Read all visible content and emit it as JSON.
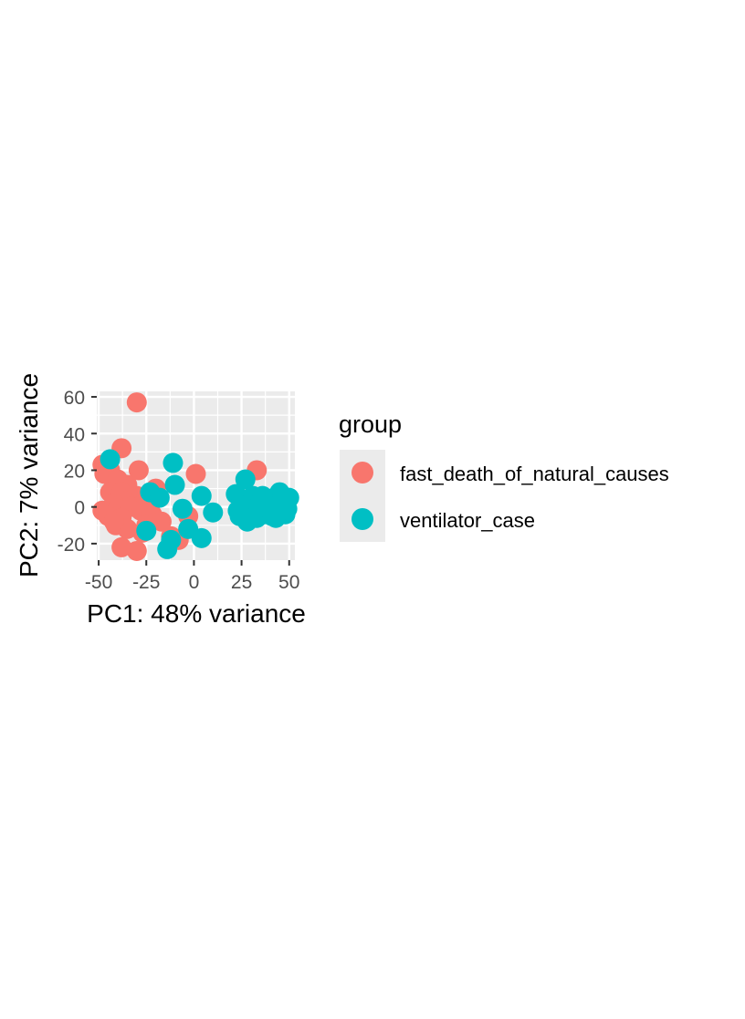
{
  "chart_data": {
    "type": "scatter",
    "xlabel": "PC1: 48% variance",
    "ylabel": "PC2: 7% variance",
    "xlim": [
      -51,
      53
    ],
    "ylim": [
      -29,
      63
    ],
    "x_ticks": [
      -50,
      -25,
      0,
      25,
      50
    ],
    "x_tick_labels": [
      "-50",
      "-25",
      "0",
      "25",
      "50"
    ],
    "y_ticks": [
      -20,
      0,
      20,
      40,
      60
    ],
    "y_tick_labels": [
      "-20",
      "0",
      "20",
      "40",
      "60"
    ],
    "grid": true,
    "legend": {
      "title": "group",
      "placement": "right"
    },
    "series": [
      {
        "name": "fast_death_of_natural_causes",
        "color": "#F8766D",
        "points": [
          [
            -30,
            57
          ],
          [
            -38,
            32
          ],
          [
            -48,
            23
          ],
          [
            -44,
            20
          ],
          [
            -29,
            20
          ],
          [
            -47,
            18
          ],
          [
            1,
            18
          ],
          [
            33,
            20
          ],
          [
            -40,
            15
          ],
          [
            -35,
            12
          ],
          [
            -20,
            10
          ],
          [
            -44,
            8
          ],
          [
            -38,
            8
          ],
          [
            -30,
            6
          ],
          [
            -25,
            5
          ],
          [
            -36,
            3
          ],
          [
            -42,
            2
          ],
          [
            -48,
            -2
          ],
          [
            -40,
            -1
          ],
          [
            -33,
            0
          ],
          [
            -28,
            -2
          ],
          [
            -45,
            -5
          ],
          [
            -38,
            -6
          ],
          [
            -22,
            -4
          ],
          [
            -3,
            -5
          ],
          [
            -41,
            -10
          ],
          [
            -35,
            -12
          ],
          [
            -27,
            -14
          ],
          [
            -17,
            -8
          ],
          [
            -12,
            -16
          ],
          [
            -8,
            -18
          ],
          [
            -38,
            -22
          ],
          [
            -30,
            -24
          ],
          [
            -25,
            -10
          ],
          [
            -42,
            -8
          ]
        ]
      },
      {
        "name": "ventilator_case",
        "color": "#00BFC4",
        "points": [
          [
            -44,
            26
          ],
          [
            -11,
            24
          ],
          [
            -10,
            12
          ],
          [
            -23,
            8
          ],
          [
            -18,
            5
          ],
          [
            4,
            6
          ],
          [
            -6,
            -1
          ],
          [
            10,
            -3
          ],
          [
            -25,
            -13
          ],
          [
            -12,
            -18
          ],
          [
            -14,
            -23
          ],
          [
            -3,
            -12
          ],
          [
            4,
            -17
          ],
          [
            27,
            15
          ],
          [
            22,
            7
          ],
          [
            25,
            4
          ],
          [
            28,
            2
          ],
          [
            31,
            6
          ],
          [
            35,
            3
          ],
          [
            38,
            0
          ],
          [
            42,
            5
          ],
          [
            45,
            8
          ],
          [
            47,
            2
          ],
          [
            49,
            -1
          ],
          [
            50,
            5
          ],
          [
            24,
            -5
          ],
          [
            28,
            -8
          ],
          [
            33,
            -6
          ],
          [
            37,
            -4
          ],
          [
            41,
            -5
          ],
          [
            46,
            -3
          ],
          [
            30,
            -2
          ],
          [
            26,
            0
          ],
          [
            39,
            3
          ],
          [
            44,
            1
          ],
          [
            48,
            -4
          ],
          [
            34,
            0
          ],
          [
            23,
            -2
          ],
          [
            36,
            6
          ],
          [
            43,
            -6
          ]
        ]
      }
    ]
  }
}
